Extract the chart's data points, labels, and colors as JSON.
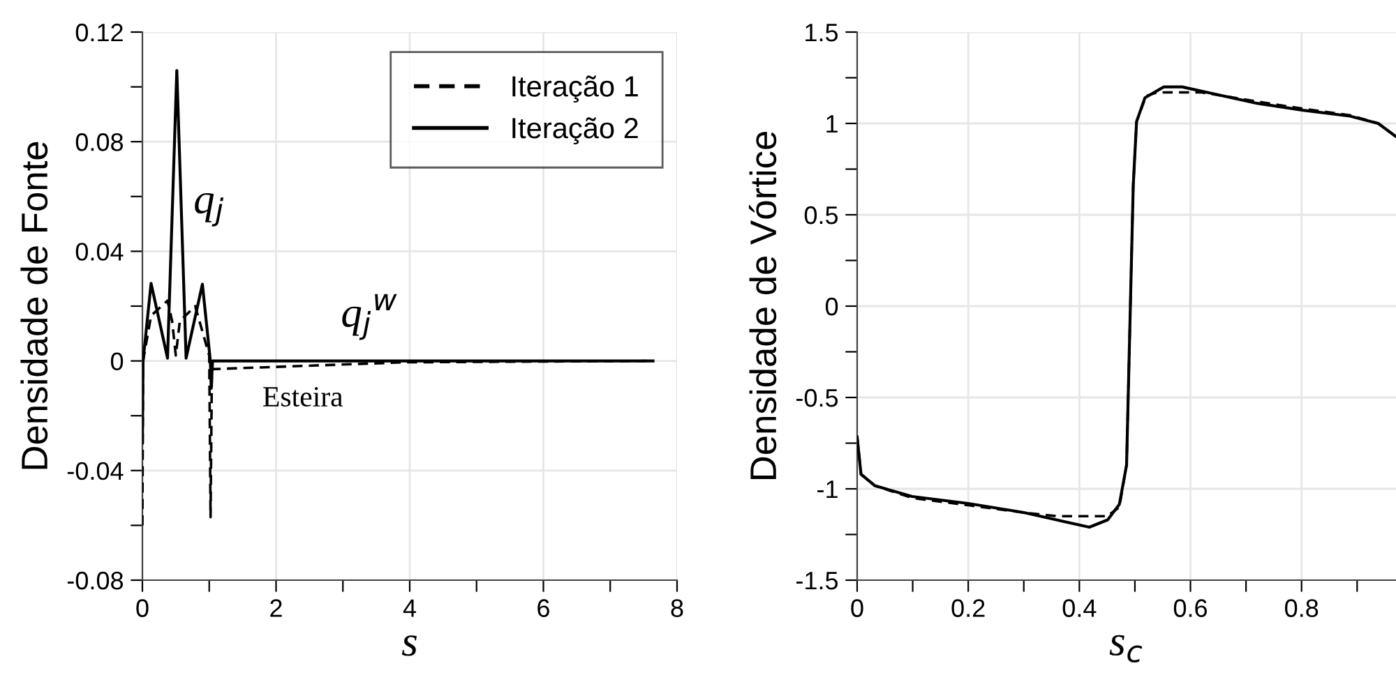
{
  "chart_data": [
    {
      "type": "line",
      "xlabel": "s",
      "ylabel": "Densidade de Fonte",
      "xlim": [
        0,
        8
      ],
      "ylim": [
        -0.08,
        0.12
      ],
      "xticks": [
        0,
        {
          "value": 1,
          "label": null
        },
        2,
        {
          "value": 3,
          "label": null
        },
        4,
        {
          "value": 5,
          "label": null
        },
        6,
        {
          "value": 7,
          "label": null
        },
        8
      ],
      "yticks": [
        -0.08,
        {
          "value": -0.06,
          "label": null
        },
        -0.04,
        {
          "value": -0.02,
          "label": null
        },
        0,
        {
          "value": 0.02,
          "label": null
        },
        0.04,
        {
          "value": 0.06,
          "label": null
        },
        0.08,
        {
          "value": 0.1,
          "label": null
        },
        0.12
      ],
      "grid": true,
      "legend": "top right",
      "series": [
        {
          "name": "Iteração 1",
          "color": "#000000",
          "line_style": "dashed",
          "x": [
            0,
            0.01,
            0.13,
            0.376,
            0.445,
            0.5,
            0.56,
            0.79,
            1.0,
            1.02,
            1.04,
            3.92,
            7.64
          ],
          "values": [
            -0.06,
            0.0,
            0.0165,
            0.022,
            0.0145,
            0.002,
            0.0145,
            0.02,
            0.002,
            -0.057,
            -0.003,
            -0.0005,
            0
          ]
        },
        {
          "name": "Iteração 2",
          "color": "#000000",
          "line_style": "solid",
          "x": [
            0,
            0.01,
            0.13,
            0.376,
            0.515,
            0.654,
            0.898,
            1.017,
            1.03,
            1.05,
            7.64
          ],
          "values": [
            -0.03,
            0.0,
            0.0283,
            0.001,
            0.106,
            0.001,
            0.028,
            0.0,
            -0.01,
            0.0,
            0
          ]
        }
      ],
      "annotations": [
        "q$_{j}$",
        "q$_{j}$$^{w}$",
        "Esteira"
      ]
    },
    {
      "type": "line",
      "xlabel": "s$_{c}$",
      "ylabel": "Densidade de Vórtice",
      "xlim": [
        0,
        0.97
      ],
      "ylim": [
        -1.5,
        1.5
      ],
      "xticks": [
        0,
        {
          "value": 0.1,
          "label": null
        },
        0.2,
        {
          "value": 0.3,
          "label": null
        },
        0.4,
        {
          "value": 0.5,
          "label": null
        },
        0.6,
        {
          "value": 0.7,
          "label": null
        },
        0.8,
        {
          "value": 0.9,
          "label": null
        }
      ],
      "yticks": [
        -1.5,
        {
          "value": -1.25,
          "label": null
        },
        -1,
        {
          "value": -0.75,
          "label": null
        },
        -0.5,
        {
          "value": -0.25,
          "label": null
        },
        0,
        {
          "value": 0.25,
          "label": null
        },
        0.5,
        {
          "value": 0.75,
          "label": null
        },
        1,
        {
          "value": 1.25,
          "label": null
        },
        1.5
      ],
      "grid": true,
      "series": [
        {
          "color": "#000000",
          "line_style": "dashed",
          "x": [
            0,
            0.007,
            0.032,
            0.099,
            0.2,
            0.3,
            0.36,
            0.38,
            0.45,
            0.472,
            0.485,
            0.491,
            0.497,
            0.503,
            0.52,
            0.54,
            0.62,
            0.72,
            0.803,
            0.887,
            0.938,
            0.969
          ],
          "values": [
            -0.716,
            -0.92,
            -0.983,
            -1.05,
            -1.09,
            -1.13,
            -1.15,
            -1.15,
            -1.15,
            -1.1,
            -0.87,
            -0.105,
            0.66,
            1.01,
            1.15,
            1.17,
            1.17,
            1.12,
            1.08,
            1.045,
            1.0,
            0.93
          ]
        },
        {
          "color": "#000000",
          "line_style": "solid",
          "x": [
            0,
            0.007,
            0.032,
            0.099,
            0.2,
            0.3,
            0.359,
            0.418,
            0.451,
            0.472,
            0.485,
            0.491,
            0.497,
            0.503,
            0.518,
            0.552,
            0.585,
            0.636,
            0.72,
            0.803,
            0.887,
            0.938,
            0.969
          ],
          "values": [
            -0.716,
            -0.92,
            -0.983,
            -1.042,
            -1.08,
            -1.13,
            -1.17,
            -1.21,
            -1.17,
            -1.085,
            -0.87,
            -0.105,
            0.66,
            1.01,
            1.14,
            1.2,
            1.2,
            1.166,
            1.11,
            1.072,
            1.04,
            1.0,
            0.93
          ]
        }
      ]
    }
  ]
}
